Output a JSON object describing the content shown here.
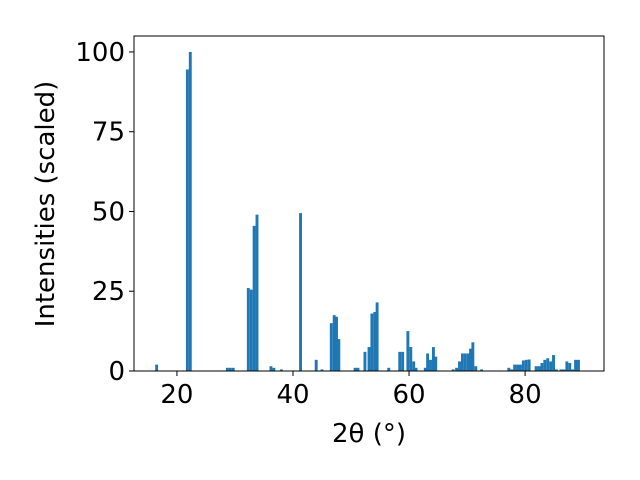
{
  "chart_data": {
    "type": "bar",
    "xlabel": "2θ (°)",
    "ylabel": "Intensities (scaled)",
    "color": "#1f77b4",
    "x": [
      16.5,
      21.8,
      22.3,
      28.7,
      29.2,
      29.7,
      32.3,
      32.8,
      33.3,
      33.8,
      36.2,
      36.7,
      38.0,
      41.3,
      44.0,
      45.0,
      46.6,
      47.1,
      47.5,
      47.9,
      50.7,
      51.2,
      52.4,
      53.1,
      53.6,
      54.1,
      54.5,
      56.5,
      58.4,
      58.9,
      59.8,
      60.3,
      60.8,
      61.2,
      62.8,
      63.2,
      63.7,
      64.2,
      64.6,
      67.6,
      68.2,
      68.7,
      69.2,
      69.7,
      70.2,
      70.6,
      71.0,
      71.5,
      72.5,
      77.2,
      77.7,
      78.2,
      78.7,
      79.2,
      79.7,
      80.2,
      80.7,
      81.9,
      82.4,
      82.9,
      83.4,
      83.9,
      84.4,
      84.9,
      85.4,
      86.2,
      86.7,
      87.2,
      87.7,
      88.2,
      88.7,
      89.2
    ],
    "values": [
      2,
      94.5,
      100,
      1,
      1,
      1,
      26,
      25.5,
      45.5,
      49,
      1.5,
      1,
      0.5,
      49.5,
      3.5,
      0.5,
      15,
      17.5,
      17,
      10,
      1,
      1,
      6,
      7.5,
      18,
      18.5,
      21.5,
      1,
      6,
      6,
      12.5,
      7.5,
      3,
      1,
      1,
      5.5,
      3.5,
      7.5,
      4.5,
      0.5,
      1,
      3,
      5.5,
      5.5,
      5.5,
      7,
      9,
      1.5,
      0.5,
      1,
      0.5,
      2,
      2,
      2,
      3.3,
      3.5,
      3.6,
      1.5,
      1.5,
      2.5,
      3.5,
      4,
      3,
      5,
      0.5,
      0.5,
      0.5,
      3,
      2.5,
      0.5,
      3.5,
      3.5
    ],
    "xlim": [
      12.6,
      93.6
    ],
    "xticks": [
      20,
      40,
      60,
      80
    ],
    "ylim": [
      0,
      105
    ],
    "yticks": [
      0,
      25,
      50,
      75,
      100
    ]
  }
}
